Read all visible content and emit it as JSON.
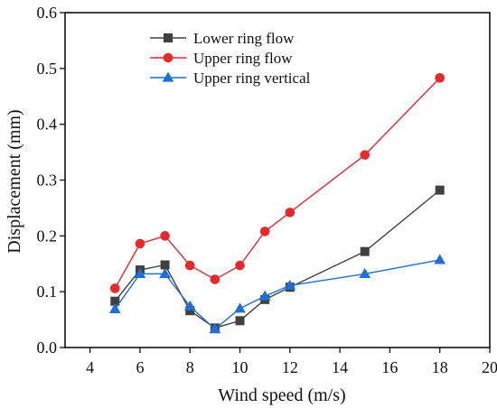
{
  "chart_data": {
    "type": "line",
    "title": "",
    "xlabel": "Wind speed (m/s)",
    "ylabel": "Displacement (mm)",
    "xlim": [
      3,
      20
    ],
    "ylim": [
      0,
      0.6
    ],
    "xticks": [
      4,
      6,
      8,
      10,
      12,
      14,
      16,
      18,
      20
    ],
    "yticks": [
      0.0,
      0.1,
      0.2,
      0.3,
      0.4,
      0.5,
      0.6
    ],
    "ytick_labels": [
      "0.0",
      "0.1",
      "0.2",
      "0.3",
      "0.4",
      "0.5",
      "0.6"
    ],
    "grid": false,
    "legend_position": "top-left",
    "x": [
      5,
      6,
      7,
      8,
      9,
      10,
      11,
      12,
      15,
      18
    ],
    "series": [
      {
        "name": "Lower ring flow",
        "color": "#404040",
        "marker": "square",
        "values": [
          0.083,
          0.139,
          0.148,
          0.066,
          0.035,
          0.048,
          0.086,
          0.108,
          0.172,
          0.282
        ]
      },
      {
        "name": "Upper ring flow",
        "color": "#e8282b",
        "marker": "circle",
        "values": [
          0.106,
          0.186,
          0.2,
          0.147,
          0.122,
          0.147,
          0.208,
          0.242,
          0.345,
          0.483
        ]
      },
      {
        "name": "Upper ring vertical",
        "color": "#1f6fd8",
        "marker": "triangle",
        "values": [
          0.069,
          0.132,
          0.132,
          0.074,
          0.033,
          0.07,
          0.092,
          0.111,
          0.132,
          0.157
        ]
      }
    ]
  }
}
